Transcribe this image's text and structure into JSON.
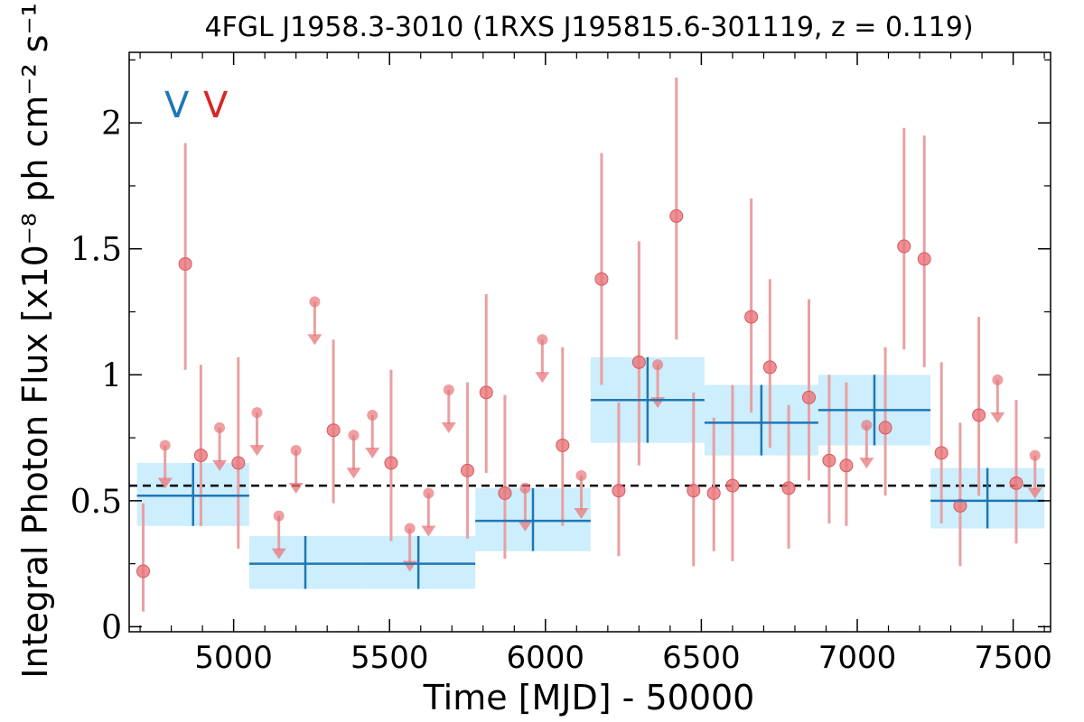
{
  "chart_data": {
    "type": "scatter",
    "title": "4FGL J1958.3-3010 (1RXS J195815.6-301119, z = 0.119)",
    "xlabel": "Time [MJD] - 50000",
    "ylabel": "Integral Photon Flux [x10⁻⁸ ph cm⁻² s⁻¹]",
    "xlim": [
      4665,
      7620
    ],
    "ylim": [
      -0.02,
      2.28
    ],
    "x_ticks": [
      5000,
      5500,
      6000,
      6500,
      7000,
      7500
    ],
    "x_ticklabels": [
      "5000",
      "5500",
      "6000",
      "6500",
      "7000",
      "7500"
    ],
    "y_ticks": [
      0,
      0.5,
      1,
      1.5,
      2
    ],
    "y_ticklabels": [
      "0",
      "0.5",
      "1",
      "1.5",
      "2"
    ],
    "mean_flux": 0.56,
    "markers": [
      {
        "label": "V",
        "color": "#1f77b4"
      },
      {
        "label": "V",
        "color": "#d62728"
      }
    ],
    "colors": {
      "points": "#e8757a",
      "errorbars": "#e8a0a2",
      "bins": "#1f77b4",
      "bin_fill": "#cdeefc",
      "mean_line": "#000000"
    },
    "series": [
      {
        "type": "detections",
        "points": [
          {
            "x": 4710,
            "y": 0.22,
            "lo": 0.06,
            "hi": 0.49
          },
          {
            "x": 4845,
            "y": 1.44,
            "lo": 1.02,
            "hi": 1.92
          },
          {
            "x": 4895,
            "y": 0.68,
            "lo": 0.4,
            "hi": 1.04
          },
          {
            "x": 5015,
            "y": 0.65,
            "lo": 0.31,
            "hi": 1.07
          },
          {
            "x": 5320,
            "y": 0.78,
            "lo": 0.49,
            "hi": 1.14
          },
          {
            "x": 5505,
            "y": 0.65,
            "lo": 0.34,
            "hi": 1.02
          },
          {
            "x": 5750,
            "y": 0.62,
            "lo": 0.35,
            "hi": 0.97
          },
          {
            "x": 5810,
            "y": 0.93,
            "lo": 0.61,
            "hi": 1.32
          },
          {
            "x": 5870,
            "y": 0.53,
            "lo": 0.27,
            "hi": 0.92
          },
          {
            "x": 6055,
            "y": 0.72,
            "lo": 0.4,
            "hi": 1.11
          },
          {
            "x": 6180,
            "y": 1.38,
            "lo": 0.96,
            "hi": 1.88
          },
          {
            "x": 6235,
            "y": 0.54,
            "lo": 0.28,
            "hi": 0.89
          },
          {
            "x": 6300,
            "y": 1.05,
            "lo": 0.64,
            "hi": 1.53
          },
          {
            "x": 6420,
            "y": 1.63,
            "lo": 1.14,
            "hi": 2.18
          },
          {
            "x": 6475,
            "y": 0.54,
            "lo": 0.24,
            "hi": 0.93
          },
          {
            "x": 6540,
            "y": 0.53,
            "lo": 0.3,
            "hi": 0.83
          },
          {
            "x": 6600,
            "y": 0.56,
            "lo": 0.26,
            "hi": 0.96
          },
          {
            "x": 6660,
            "y": 1.23,
            "lo": 0.85,
            "hi": 1.7
          },
          {
            "x": 6720,
            "y": 1.03,
            "lo": 0.71,
            "hi": 1.38
          },
          {
            "x": 6780,
            "y": 0.55,
            "lo": 0.31,
            "hi": 0.88
          },
          {
            "x": 6845,
            "y": 0.91,
            "lo": 0.58,
            "hi": 1.3
          },
          {
            "x": 6910,
            "y": 0.66,
            "lo": 0.41,
            "hi": 1.0
          },
          {
            "x": 6965,
            "y": 0.64,
            "lo": 0.4,
            "hi": 0.97
          },
          {
            "x": 7090,
            "y": 0.79,
            "lo": 0.52,
            "hi": 1.11
          },
          {
            "x": 7150,
            "y": 1.51,
            "lo": 1.1,
            "hi": 1.98
          },
          {
            "x": 7215,
            "y": 1.46,
            "lo": 1.03,
            "hi": 1.95
          },
          {
            "x": 7270,
            "y": 0.69,
            "lo": 0.41,
            "hi": 1.05
          },
          {
            "x": 7330,
            "y": 0.48,
            "lo": 0.24,
            "hi": 0.81
          },
          {
            "x": 7390,
            "y": 0.84,
            "lo": 0.52,
            "hi": 1.23
          },
          {
            "x": 7510,
            "y": 0.57,
            "lo": 0.33,
            "hi": 0.9
          }
        ]
      },
      {
        "type": "upper_limits",
        "points": [
          {
            "x": 4780,
            "y": 0.72
          },
          {
            "x": 4955,
            "y": 0.79
          },
          {
            "x": 5075,
            "y": 0.85
          },
          {
            "x": 5145,
            "y": 0.44
          },
          {
            "x": 5200,
            "y": 0.7
          },
          {
            "x": 5260,
            "y": 1.29
          },
          {
            "x": 5385,
            "y": 0.76
          },
          {
            "x": 5445,
            "y": 0.84
          },
          {
            "x": 5565,
            "y": 0.39
          },
          {
            "x": 5625,
            "y": 0.53
          },
          {
            "x": 5690,
            "y": 0.94
          },
          {
            "x": 5935,
            "y": 0.55
          },
          {
            "x": 5990,
            "y": 1.14
          },
          {
            "x": 6115,
            "y": 0.6
          },
          {
            "x": 6360,
            "y": 1.04
          },
          {
            "x": 7030,
            "y": 0.8
          },
          {
            "x": 7450,
            "y": 0.98
          },
          {
            "x": 7570,
            "y": 0.68
          }
        ]
      },
      {
        "type": "bins",
        "bins": [
          {
            "x0": 4690,
            "x1": 5050,
            "y": 0.52,
            "lo": 0.4,
            "hi": 0.65
          },
          {
            "x0": 5050,
            "x1": 5410,
            "y": 0.25,
            "lo": 0.15,
            "hi": 0.36
          },
          {
            "x0": 5410,
            "x1": 5775,
            "y": 0.25,
            "lo": 0.15,
            "hi": 0.36
          },
          {
            "x0": 5775,
            "x1": 6145,
            "y": 0.42,
            "lo": 0.3,
            "hi": 0.55
          },
          {
            "x0": 6145,
            "x1": 6510,
            "y": 0.9,
            "lo": 0.73,
            "hi": 1.07
          },
          {
            "x0": 6510,
            "x1": 6875,
            "y": 0.81,
            "lo": 0.68,
            "hi": 0.96
          },
          {
            "x0": 6875,
            "x1": 7235,
            "y": 0.86,
            "lo": 0.72,
            "hi": 1.0
          },
          {
            "x0": 7235,
            "x1": 7600,
            "y": 0.5,
            "lo": 0.39,
            "hi": 0.63
          }
        ]
      }
    ]
  }
}
